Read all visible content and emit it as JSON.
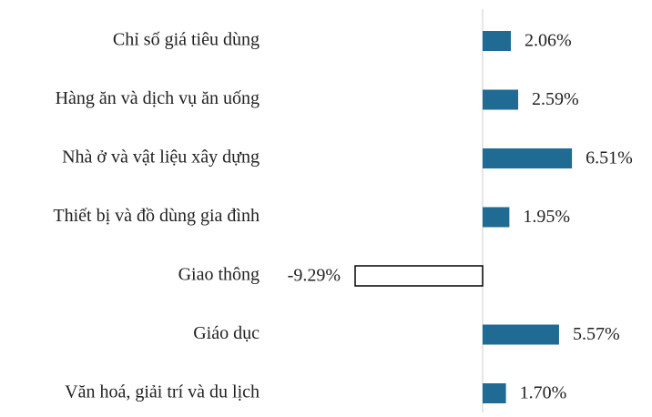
{
  "chart_data": {
    "type": "barh",
    "categories": [
      "Chỉ số giá tiêu dùng",
      "Hàng ăn và dịch vụ ăn uống",
      "Nhà ở và vật liệu xây dựng",
      "Thiết bị và đồ dùng gia đình",
      "Giao thông",
      "Giáo dục",
      "Văn hoá, giải trí và du lịch"
    ],
    "values": [
      2.06,
      2.59,
      6.51,
      1.95,
      -9.29,
      5.57,
      1.7
    ],
    "value_labels": [
      "2.06%",
      "2.59%",
      "6.51%",
      "1.95%",
      "-9.29%",
      "5.57%",
      "1.70%"
    ],
    "color": "#1f6b93",
    "negative_color": "#ffffff"
  }
}
